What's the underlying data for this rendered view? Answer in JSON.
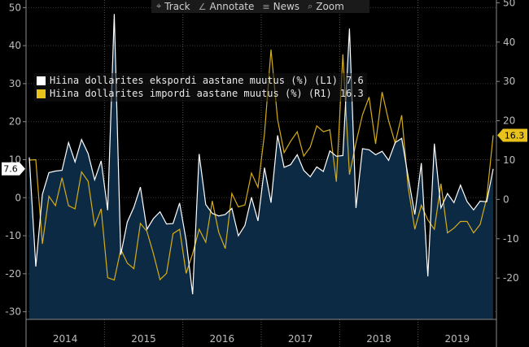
{
  "toolbar": {
    "items": [
      {
        "label": "Track",
        "icon": "crosshair-icon",
        "glyph": "⌖"
      },
      {
        "label": "Annotate",
        "icon": "pencil-icon",
        "glyph": "∠"
      },
      {
        "label": "News",
        "icon": "news-icon",
        "glyph": "≡"
      },
      {
        "label": "Zoom",
        "icon": "magnifier-icon",
        "glyph": "⌕"
      }
    ]
  },
  "legend": [
    {
      "label": "Hiina dollarites ekspordi aastane muutus (%) (L1)",
      "value": "7.6",
      "color": "#ffffff"
    },
    {
      "label": "Hiina dollarites impordi aastane muutus (%) (R1)",
      "value": "16.3",
      "color": "#e8c21b"
    }
  ],
  "chart_data": {
    "type": "line",
    "x_tick_labels": [
      "2014",
      "2015",
      "2016",
      "2017",
      "2018",
      "2019"
    ],
    "left_axis": {
      "ticks": [
        50,
        40,
        30,
        20,
        10,
        0,
        -10,
        -20,
        -30
      ],
      "ylim": [
        -32,
        52
      ]
    },
    "right_axis": {
      "ticks": [
        50,
        40,
        30,
        20,
        10,
        0,
        -10,
        -20
      ],
      "ylim": [
        -30.5,
        50.7
      ]
    },
    "grid": true,
    "legend_position": "top-left",
    "last_value_tags": [
      {
        "series": "export",
        "text": "7.6",
        "side": "left",
        "color": "#ffffff"
      },
      {
        "series": "import",
        "text": "16.3",
        "side": "right",
        "color": "#e8c21b"
      }
    ],
    "colors": {
      "export_line": "#ffffff",
      "export_fill": "#0d2a45",
      "import_line": "#d4ad1b",
      "grid": "#3a3a3a",
      "axis_text": "#bdbdbd"
    },
    "series": [
      {
        "key": "export",
        "axis": "left",
        "x": [
          "2014-01",
          "2014-02",
          "2014-03",
          "2014-04",
          "2014-05",
          "2014-06",
          "2014-07",
          "2014-08",
          "2014-09",
          "2014-10",
          "2014-11",
          "2014-12",
          "2015-01",
          "2015-02",
          "2015-03",
          "2015-04",
          "2015-05",
          "2015-06",
          "2015-07",
          "2015-08",
          "2015-09",
          "2015-10",
          "2015-11",
          "2015-12",
          "2016-01",
          "2016-02",
          "2016-03",
          "2016-04",
          "2016-05",
          "2016-06",
          "2016-07",
          "2016-08",
          "2016-09",
          "2016-10",
          "2016-11",
          "2016-12",
          "2017-01",
          "2017-02",
          "2017-03",
          "2017-04",
          "2017-05",
          "2017-06",
          "2017-07",
          "2017-08",
          "2017-09",
          "2017-10",
          "2017-11",
          "2017-12",
          "2018-01",
          "2018-02",
          "2018-03",
          "2018-04",
          "2018-05",
          "2018-06",
          "2018-07",
          "2018-08",
          "2018-09",
          "2018-10",
          "2018-11",
          "2018-12",
          "2019-01",
          "2019-02",
          "2019-03",
          "2019-04",
          "2019-05",
          "2019-06",
          "2019-07",
          "2019-08",
          "2019-09",
          "2019-10",
          "2019-11",
          "2019-12"
        ],
        "values": [
          10.6,
          -18.1,
          0.9,
          6.6,
          7.0,
          7.2,
          14.5,
          9.4,
          15.3,
          11.6,
          4.7,
          9.7,
          -3.3,
          48.3,
          -15.0,
          -6.4,
          -2.5,
          2.8,
          -8.3,
          -5.5,
          -3.7,
          -6.9,
          -6.8,
          -1.4,
          -11.2,
          -25.4,
          11.5,
          -1.8,
          -4.1,
          -4.8,
          -4.4,
          -2.8,
          -10.0,
          -7.3,
          0.1,
          -6.1,
          7.9,
          -1.3,
          16.4,
          8.0,
          8.7,
          11.3,
          7.2,
          5.5,
          8.1,
          6.9,
          12.3,
          10.9,
          11.1,
          44.5,
          -2.7,
          12.9,
          12.6,
          11.3,
          12.2,
          9.8,
          14.5,
          15.6,
          5.4,
          -4.4,
          9.1,
          -20.7,
          14.2,
          -2.7,
          1.1,
          -1.3,
          3.3,
          -1.0,
          -3.2,
          -0.9,
          -1.1,
          7.6
        ]
      },
      {
        "key": "import",
        "axis": "right",
        "x": [
          "2014-01",
          "2014-02",
          "2014-03",
          "2014-04",
          "2014-05",
          "2014-06",
          "2014-07",
          "2014-08",
          "2014-09",
          "2014-10",
          "2014-11",
          "2014-12",
          "2015-01",
          "2015-02",
          "2015-03",
          "2015-04",
          "2015-05",
          "2015-06",
          "2015-07",
          "2015-08",
          "2015-09",
          "2015-10",
          "2015-11",
          "2015-12",
          "2016-01",
          "2016-02",
          "2016-03",
          "2016-04",
          "2016-05",
          "2016-06",
          "2016-07",
          "2016-08",
          "2016-09",
          "2016-10",
          "2016-11",
          "2016-12",
          "2017-01",
          "2017-02",
          "2017-03",
          "2017-04",
          "2017-05",
          "2017-06",
          "2017-07",
          "2017-08",
          "2017-09",
          "2017-10",
          "2017-11",
          "2017-12",
          "2018-01",
          "2018-02",
          "2018-03",
          "2018-04",
          "2018-05",
          "2018-06",
          "2018-07",
          "2018-08",
          "2018-09",
          "2018-10",
          "2018-11",
          "2018-12",
          "2019-01",
          "2019-02",
          "2019-03",
          "2019-04",
          "2019-05",
          "2019-06",
          "2019-07",
          "2019-08",
          "2019-09",
          "2019-10",
          "2019-11",
          "2019-12"
        ],
        "values": [
          10.0,
          10.1,
          -11.3,
          0.8,
          -1.6,
          5.5,
          -1.6,
          -2.4,
          7.0,
          4.6,
          -6.7,
          -2.4,
          -19.9,
          -20.5,
          -12.7,
          -16.2,
          -17.6,
          -6.1,
          -8.1,
          -13.8,
          -20.4,
          -18.8,
          -8.7,
          -7.6,
          -18.8,
          -13.8,
          -7.6,
          -10.9,
          -0.4,
          -8.4,
          -12.5,
          1.5,
          -1.9,
          -1.4,
          6.7,
          3.1,
          16.7,
          38.1,
          20.3,
          11.9,
          14.8,
          17.2,
          11.0,
          13.3,
          18.7,
          17.2,
          17.7,
          4.5,
          36.9,
          6.3,
          14.4,
          21.5,
          26.0,
          14.1,
          27.3,
          20.0,
          14.3,
          21.4,
          3.0,
          -7.6,
          -1.5,
          -5.2,
          -7.6,
          4.0,
          -8.5,
          -7.3,
          -5.6,
          -5.6,
          -8.5,
          -6.4,
          0.3,
          16.3
        ]
      }
    ]
  }
}
